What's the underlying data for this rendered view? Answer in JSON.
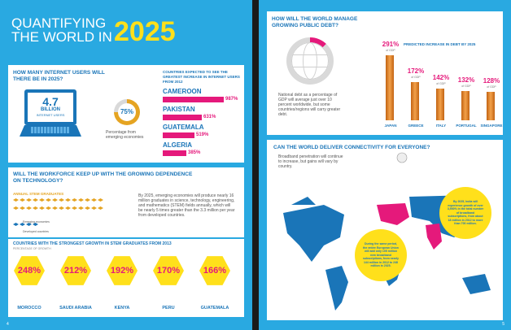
{
  "left_page": {
    "title_line1": "QUANTIFYING",
    "title_line2": "THE WORLD IN",
    "title_year": "2025",
    "internet": {
      "heading_line1": "HOW MANY INTERNET USERS WILL",
      "heading_line2": "THERE BE IN 2025?",
      "users_value": "4.7",
      "users_unit": "BILLION",
      "users_label": "INTERNET USERS",
      "pct": "75%",
      "pct_caption": "Percentage from emerging economies",
      "countries_heading": "COUNTRIES EXPECTED TO SEE THE GREATEST INCREASE IN INTERNET USERS FROM 2012",
      "countries": [
        {
          "name": "CAMEROON",
          "value": "987%",
          "num": 987
        },
        {
          "name": "PAKISTAN",
          "value": "631%",
          "num": 631
        },
        {
          "name": "GUATEMALA",
          "value": "519%",
          "num": 519
        },
        {
          "name": "ALGERIA",
          "value": "385%",
          "num": 385
        }
      ]
    },
    "workforce": {
      "heading_line1": "WILL THE WORKFORCE KEEP UP WITH THE GROWING DEPENDENCE",
      "heading_line2": "ON TECHNOLOGY?",
      "stem_label": "ANNUAL STEM GRADUATES",
      "legend_emerging": "Emerging economies",
      "legend_developed": "Developed countries",
      "body": "By 2025, emerging economies will produce nearly 16 million graduates in science, technology, engineering, and mathematics (STEM) fields annually, which will be nearly 5 times greater than the 3.3 million per year from developed countries.",
      "growth_heading": "COUNTRIES WITH THE STRONGEST GROWTH IN STEM GRADUATES FROM 2013",
      "growth_sub": "PERCENTAGE OF GROWTH",
      "growth": [
        {
          "country": "MOROCCO",
          "value": "248%"
        },
        {
          "country": "SAUDI ARABIA",
          "value": "212%"
        },
        {
          "country": "KENYA",
          "value": "192%"
        },
        {
          "country": "PERU",
          "value": "170%"
        },
        {
          "country": "GUATEMALA",
          "value": "166%"
        }
      ]
    },
    "page_number": "4"
  },
  "right_page": {
    "debt": {
      "heading_line1": "HOW WILL THE WORLD MANAGE",
      "heading_line2": "GROWING PUBLIC DEBT?",
      "chart_caption": "PREDICTED INCREASE IN DEBT BY 2025",
      "note": "National debt as a percentage of GDP will average just over 10 percent worldwide, but some countries/regions will carry greater debt.",
      "sub": "of GDP",
      "bars": [
        {
          "country": "JAPAN",
          "value": "291%",
          "num": 291
        },
        {
          "country": "GREECE",
          "value": "172%",
          "num": 172
        },
        {
          "country": "ITALY",
          "value": "142%",
          "num": 142
        },
        {
          "country": "PORTUGAL",
          "value": "132%",
          "num": 132
        },
        {
          "country": "SINGAPORE",
          "value": "128%",
          "num": 128
        }
      ]
    },
    "connectivity": {
      "heading": "CAN THE WORLD DELIVER CONNECTIVITY FOR EVERYONE?",
      "intro": "Broadband penetration will continue to increase, but gains will vary by country.",
      "india": "By 2025, India will experience growth of over 3,900% in the total number of broadband subscriptions, from about 18 million in 2012 to more than 700 million.",
      "eu": "During the same period, the entire European Union will add only 105 million new broadband subscriptions, from nearly 144 million in 2012 to 248 million in 2025."
    },
    "page_number": "5"
  }
}
